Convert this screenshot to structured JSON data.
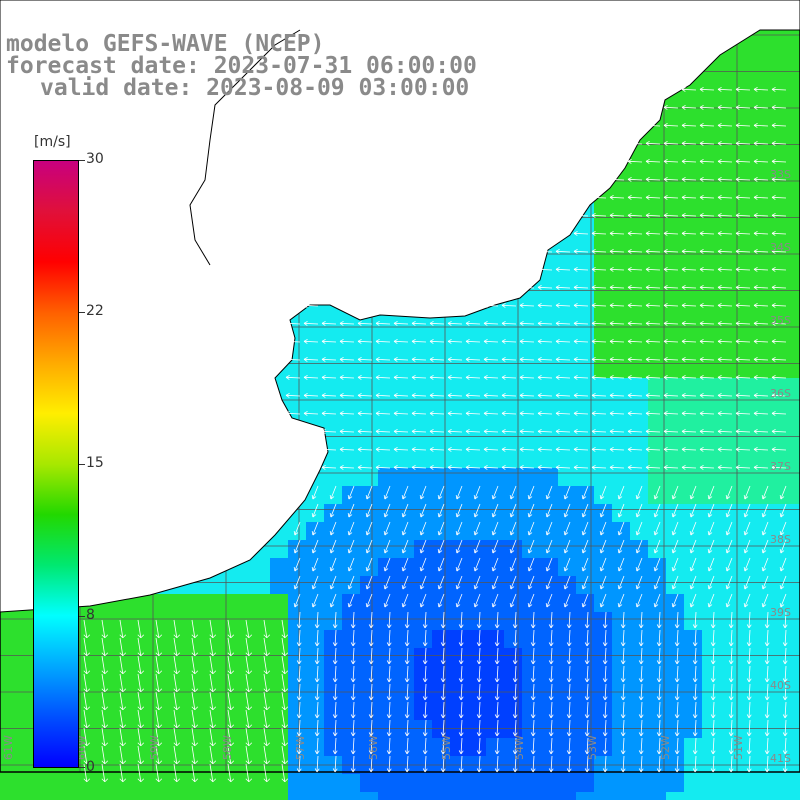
{
  "header": {
    "line1": "modelo GEFS-WAVE (NCEP)",
    "line2": "forecast date: 2023-07-31 06:00:00",
    "line3": "valid date: 2023-08-09 03:00:00"
  },
  "colorbar": {
    "unit": "[m/s]",
    "ticks": [
      "30",
      "22",
      "15",
      "8",
      "0"
    ],
    "colors": [
      "#c8007f",
      "#e0103a",
      "#ff0000",
      "#ff6000",
      "#ffaa00",
      "#ffee00",
      "#a8e800",
      "#22d800",
      "#00e870",
      "#00ffff",
      "#00a8ff",
      "#0050ff",
      "#0000ff"
    ]
  },
  "lat_labels": [
    "33S",
    "34S",
    "35S",
    "36S",
    "37S",
    "38S",
    "39S",
    "40S",
    "41S"
  ],
  "lon_labels": [
    "61W",
    "60W",
    "59W",
    "58W",
    "57W",
    "56W",
    "55W",
    "54W",
    "53W",
    "52W",
    "51W"
  ],
  "field_colors": {
    "green": "#2de02d",
    "cyan": "#14ebf0",
    "blue": "#0064ff",
    "land": "#ffffff",
    "grid": "#555555"
  }
}
